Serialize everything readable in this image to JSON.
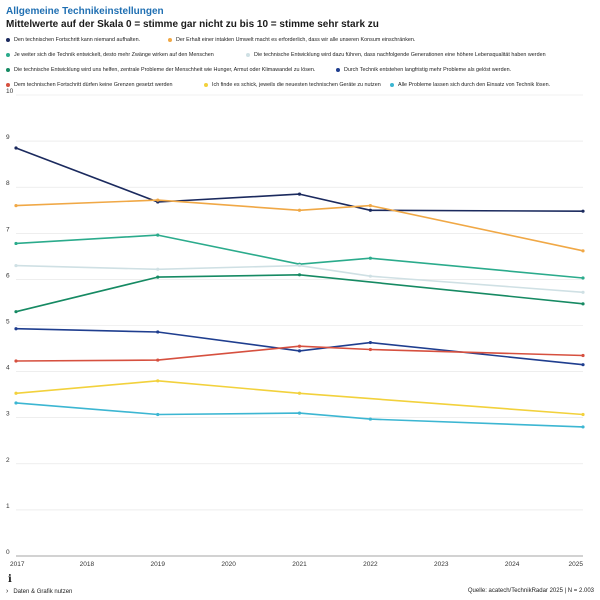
{
  "header": {
    "title": "Allgemeine Technikeinstellungen",
    "subtitle": "Mittelwerte auf der Skala 0 = stimme gar nicht zu bis 10 = stimme sehr stark zu"
  },
  "chart_data": {
    "type": "line",
    "title": "Allgemeine Technikeinstellungen",
    "xlabel": "",
    "ylabel": "",
    "ylim": [
      0,
      10
    ],
    "yticks": [
      "0",
      "1",
      "2",
      "3",
      "4",
      "5",
      "6",
      "7",
      "8",
      "9",
      "10"
    ],
    "xticks": [
      "2017",
      "2018",
      "2019",
      "2020",
      "2021",
      "2022",
      "2023",
      "2024",
      "2025"
    ],
    "xlim": [
      2017,
      2025
    ],
    "grid": "horizontal",
    "legend_position": "top",
    "series": [
      {
        "name": "Den technischen Fortschritt kann niemand aufhalten.",
        "color": "#1b2a5e",
        "x": [
          2017,
          2019,
          2021,
          2022,
          2025
        ],
        "y": [
          8.85,
          7.68,
          7.85,
          7.5,
          7.48
        ]
      },
      {
        "name": "Der Erhalt einer intakten Umwelt macht es erforderlich, dass wir alle unseren Konsum einschränken.",
        "color": "#f0a846",
        "x": [
          2017,
          2019,
          2021,
          2022,
          2025
        ],
        "y": [
          7.6,
          7.72,
          7.5,
          7.6,
          6.62
        ]
      },
      {
        "name": "Je weiter sich die Technik entwickelt, desto mehr Zwänge wirken auf den Menschen",
        "color": "#2bab8c",
        "x": [
          2017,
          2019,
          2021,
          2022,
          2025
        ],
        "y": [
          6.78,
          6.96,
          6.33,
          6.46,
          6.03
        ]
      },
      {
        "name": "Die technische Entwicklung wird dazu führen, dass nachfolgende Generationen eine höhere Lebensqualität haben werden",
        "color": "#cfe0e4",
        "x": [
          2017,
          2019,
          2021,
          2022,
          2025
        ],
        "y": [
          6.3,
          6.22,
          6.3,
          6.07,
          5.72
        ]
      },
      {
        "name": "Die technische Entwicklung wird uns helfen, zentrale Probleme der Menschheit wie Hunger, Armut oder Klimawandel zu lösen.",
        "color": "#168a63",
        "x": [
          2017,
          2019,
          2021,
          2025
        ],
        "y": [
          5.3,
          6.05,
          6.1,
          5.47
        ]
      },
      {
        "name": "Durch Technik entstehen langfristig mehr Probleme als gelöst werden.",
        "color": "#1f3e8f",
        "x": [
          2017,
          2019,
          2021,
          2022,
          2025
        ],
        "y": [
          4.93,
          4.86,
          4.45,
          4.63,
          4.15
        ]
      },
      {
        "name": "Dem technischen Fortschritt dürfen keine Grenzen gesetzt werden",
        "color": "#d6503f",
        "x": [
          2017,
          2019,
          2021,
          2022,
          2025
        ],
        "y": [
          4.23,
          4.25,
          4.55,
          4.48,
          4.35
        ]
      },
      {
        "name": "Ich finde es schick, jeweils die neuesten technischen Geräte zu nutzen",
        "color": "#f2d13c",
        "x": [
          2017,
          2019,
          2021,
          2025
        ],
        "y": [
          3.53,
          3.8,
          3.53,
          3.07
        ]
      },
      {
        "name": "Alle Probleme lassen sich durch den Einsatz von Technik lösen.",
        "color": "#3cb6d2",
        "x": [
          2017,
          2019,
          2021,
          2022,
          2025
        ],
        "y": [
          3.32,
          3.07,
          3.1,
          2.97,
          2.8
        ]
      }
    ]
  },
  "footer": {
    "info_icon": "i",
    "link_label": "Daten & Grafik nutzen",
    "link_chevron": "›",
    "source": "Quelle: acatech/TechnikRadar 2025 | N = 2.003"
  }
}
